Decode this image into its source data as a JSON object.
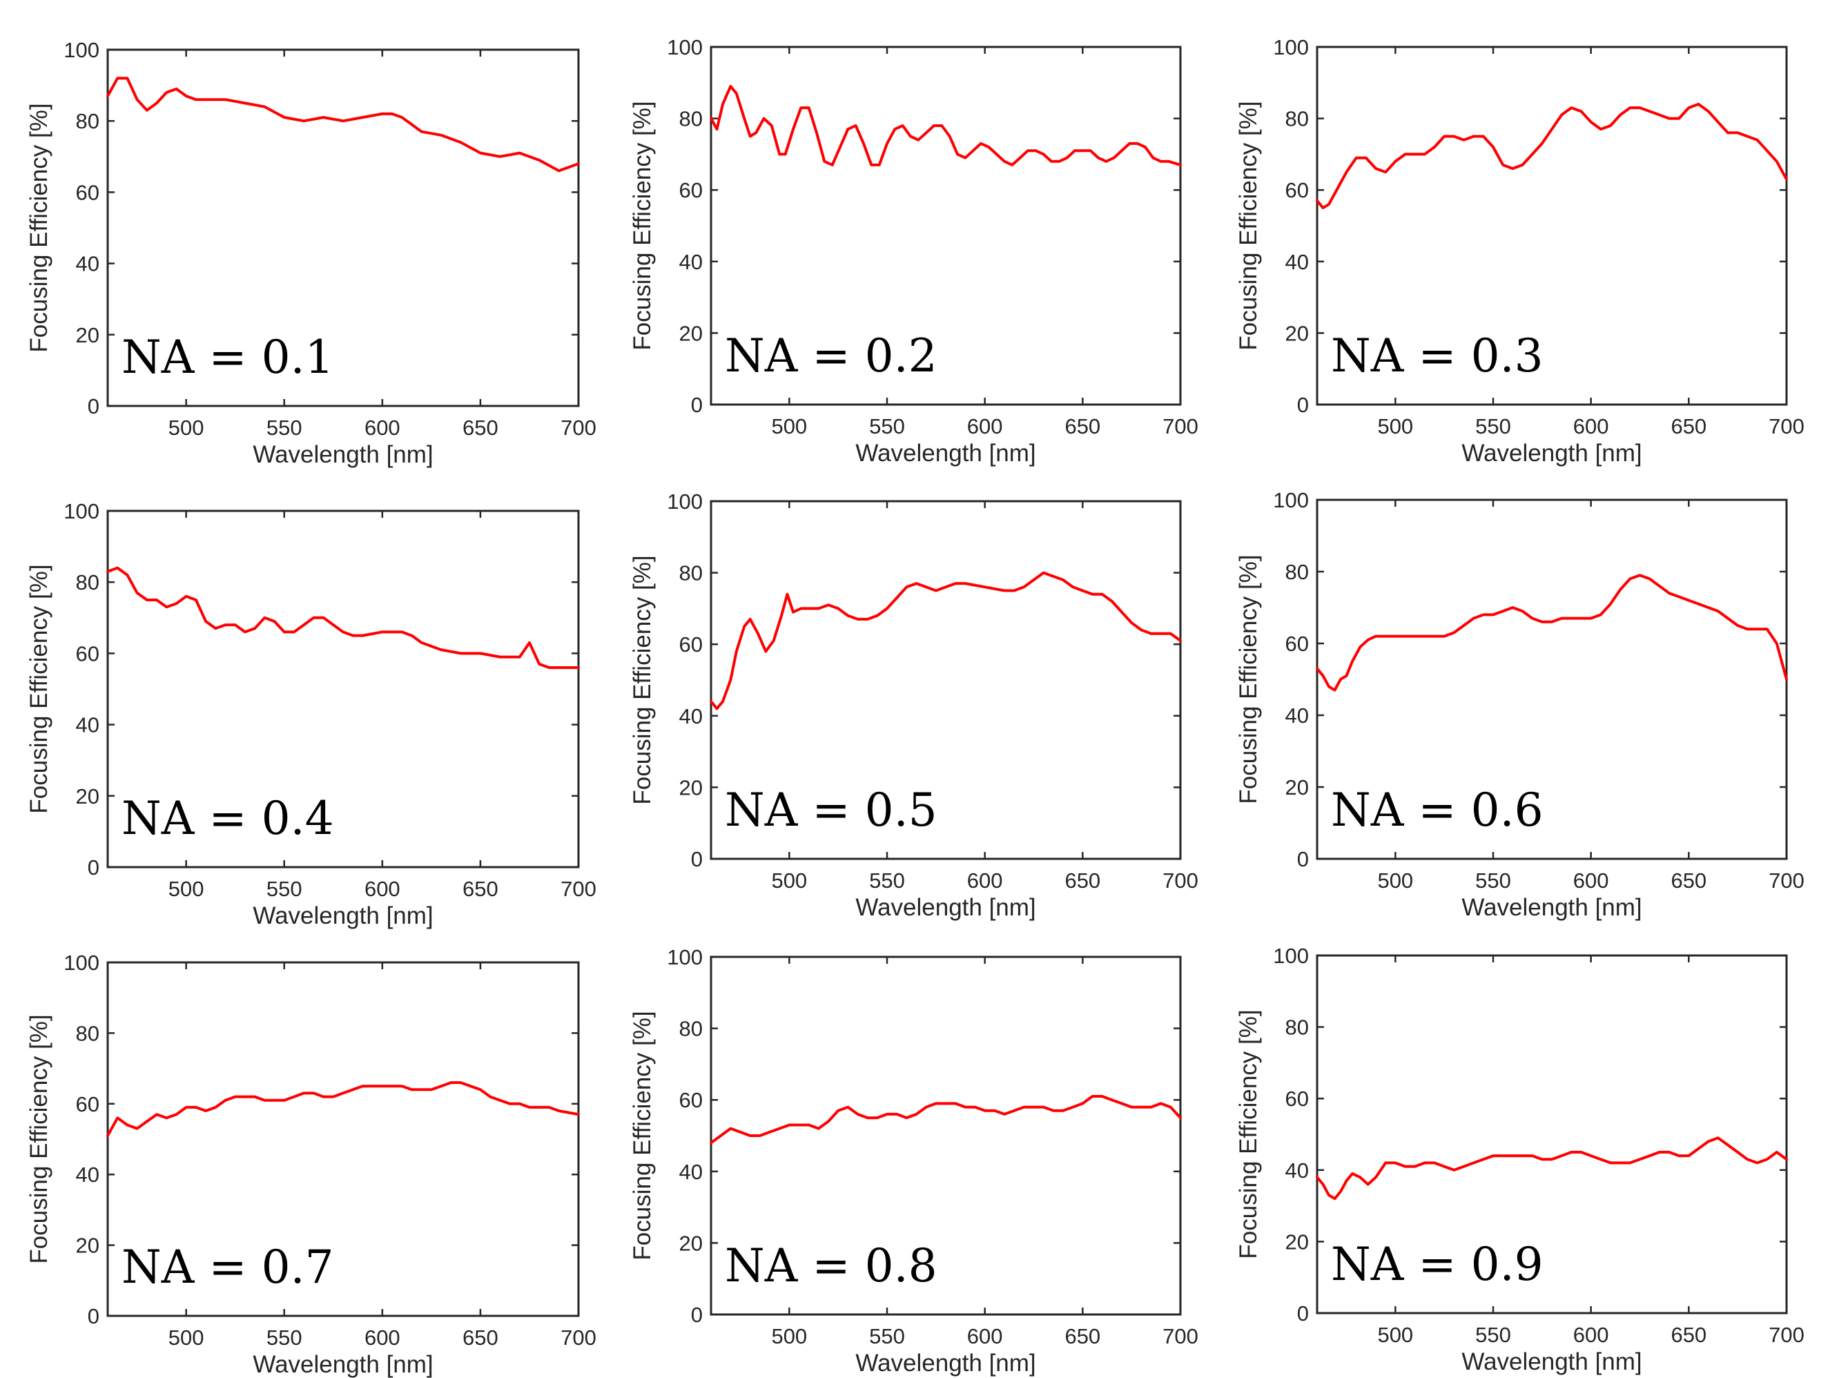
{
  "figure": {
    "series_color": "#ff0000",
    "axis_color": "#262626"
  },
  "chart_data": [
    {
      "type": "line",
      "annotation": "NA = 0.1",
      "xlabel": "Wavelength [nm]",
      "ylabel": "Focusing Efficiency [%]",
      "xlim": [
        460,
        700
      ],
      "ylim": [
        0,
        100
      ],
      "xticks": [
        500,
        550,
        600,
        650,
        700
      ],
      "yticks": [
        0,
        20,
        40,
        60,
        80,
        100
      ],
      "grid": false,
      "series": [
        {
          "name": "NA = 0.1",
          "x": [
            460,
            465,
            470,
            475,
            480,
            485,
            490,
            495,
            500,
            505,
            510,
            520,
            530,
            540,
            550,
            560,
            570,
            580,
            590,
            600,
            605,
            610,
            620,
            630,
            640,
            650,
            660,
            670,
            680,
            690,
            700
          ],
          "values": [
            87,
            92,
            92,
            86,
            83,
            85,
            88,
            89,
            87,
            86,
            86,
            86,
            85,
            84,
            81,
            80,
            81,
            80,
            81,
            82,
            82,
            81,
            77,
            76,
            74,
            71,
            70,
            71,
            69,
            66,
            68
          ]
        }
      ]
    },
    {
      "type": "line",
      "annotation": "NA = 0.2",
      "xlabel": "Wavelength [nm]",
      "ylabel": "Focusing Efficiency [%]",
      "xlim": [
        460,
        700
      ],
      "ylim": [
        0,
        100
      ],
      "xticks": [
        500,
        550,
        600,
        650,
        700
      ],
      "yticks": [
        0,
        20,
        40,
        60,
        80,
        100
      ],
      "grid": false,
      "series": [
        {
          "name": "NA = 0.2",
          "x": [
            460,
            463,
            466,
            470,
            473,
            477,
            480,
            483,
            487,
            491,
            495,
            498,
            502,
            506,
            510,
            514,
            518,
            522,
            526,
            530,
            534,
            538,
            542,
            546,
            550,
            554,
            558,
            562,
            566,
            570,
            574,
            578,
            582,
            586,
            590,
            594,
            598,
            602,
            606,
            610,
            614,
            618,
            622,
            626,
            630,
            634,
            638,
            642,
            646,
            650,
            654,
            658,
            662,
            666,
            670,
            674,
            678,
            682,
            686,
            690,
            694,
            700
          ],
          "values": [
            80,
            77,
            84,
            89,
            87,
            80,
            75,
            76,
            80,
            78,
            70,
            70,
            77,
            83,
            83,
            76,
            68,
            67,
            72,
            77,
            78,
            73,
            67,
            67,
            73,
            77,
            78,
            75,
            74,
            76,
            78,
            78,
            75,
            70,
            69,
            71,
            73,
            72,
            70,
            68,
            67,
            69,
            71,
            71,
            70,
            68,
            68,
            69,
            71,
            71,
            71,
            69,
            68,
            69,
            71,
            73,
            73,
            72,
            69,
            68,
            68,
            67
          ]
        }
      ]
    },
    {
      "type": "line",
      "annotation": "NA = 0.3",
      "xlabel": "Wavelength [nm]",
      "ylabel": "Focusing Efficiency [%]",
      "xlim": [
        460,
        700
      ],
      "ylim": [
        0,
        100
      ],
      "xticks": [
        500,
        550,
        600,
        650,
        700
      ],
      "yticks": [
        0,
        20,
        40,
        60,
        80,
        100
      ],
      "grid": false,
      "series": [
        {
          "name": "NA = 0.3",
          "x": [
            460,
            463,
            466,
            470,
            475,
            480,
            485,
            490,
            495,
            500,
            505,
            510,
            515,
            520,
            525,
            530,
            535,
            540,
            545,
            550,
            555,
            560,
            565,
            570,
            575,
            580,
            585,
            590,
            595,
            600,
            605,
            610,
            615,
            620,
            625,
            630,
            635,
            640,
            645,
            650,
            655,
            660,
            665,
            670,
            675,
            680,
            685,
            690,
            695,
            700
          ],
          "values": [
            57,
            55,
            56,
            60,
            65,
            69,
            69,
            66,
            65,
            68,
            70,
            70,
            70,
            72,
            75,
            75,
            74,
            75,
            75,
            72,
            67,
            66,
            67,
            70,
            73,
            77,
            81,
            83,
            82,
            79,
            77,
            78,
            81,
            83,
            83,
            82,
            81,
            80,
            80,
            83,
            84,
            82,
            79,
            76,
            76,
            75,
            74,
            71,
            68,
            63
          ]
        }
      ]
    },
    {
      "type": "line",
      "annotation": "NA = 0.4",
      "xlabel": "Wavelength [nm]",
      "ylabel": "Focusing Efficiency [%]",
      "xlim": [
        460,
        700
      ],
      "ylim": [
        0,
        100
      ],
      "xticks": [
        500,
        550,
        600,
        650,
        700
      ],
      "yticks": [
        0,
        20,
        40,
        60,
        80,
        100
      ],
      "grid": false,
      "series": [
        {
          "name": "NA = 0.4",
          "x": [
            460,
            465,
            470,
            475,
            480,
            485,
            490,
            495,
            500,
            505,
            510,
            515,
            520,
            525,
            530,
            535,
            540,
            545,
            550,
            555,
            560,
            565,
            570,
            575,
            580,
            585,
            590,
            600,
            610,
            615,
            620,
            630,
            640,
            650,
            660,
            665,
            670,
            675,
            680,
            685,
            690,
            700
          ],
          "values": [
            83,
            84,
            82,
            77,
            75,
            75,
            73,
            74,
            76,
            75,
            69,
            67,
            68,
            68,
            66,
            67,
            70,
            69,
            66,
            66,
            68,
            70,
            70,
            68,
            66,
            65,
            65,
            66,
            66,
            65,
            63,
            61,
            60,
            60,
            59,
            59,
            59,
            63,
            57,
            56,
            56,
            56
          ]
        }
      ]
    },
    {
      "type": "line",
      "annotation": "NA = 0.5",
      "xlabel": "Wavelength [nm]",
      "ylabel": "Focusing Efficiency [%]",
      "xlim": [
        460,
        700
      ],
      "ylim": [
        0,
        100
      ],
      "xticks": [
        500,
        550,
        600,
        650,
        700
      ],
      "yticks": [
        0,
        20,
        40,
        60,
        80,
        100
      ],
      "grid": false,
      "series": [
        {
          "name": "NA = 0.5",
          "x": [
            460,
            463,
            466,
            470,
            473,
            477,
            480,
            484,
            488,
            492,
            496,
            499,
            502,
            506,
            510,
            515,
            520,
            525,
            530,
            535,
            540,
            545,
            550,
            555,
            560,
            565,
            570,
            575,
            580,
            585,
            590,
            600,
            610,
            615,
            620,
            625,
            630,
            635,
            640,
            645,
            650,
            655,
            660,
            665,
            670,
            675,
            680,
            685,
            690,
            695,
            700
          ],
          "values": [
            44,
            42,
            44,
            50,
            58,
            65,
            67,
            63,
            58,
            61,
            68,
            74,
            69,
            70,
            70,
            70,
            71,
            70,
            68,
            67,
            67,
            68,
            70,
            73,
            76,
            77,
            76,
            75,
            76,
            77,
            77,
            76,
            75,
            75,
            76,
            78,
            80,
            79,
            78,
            76,
            75,
            74,
            74,
            72,
            69,
            66,
            64,
            63,
            63,
            63,
            61
          ]
        }
      ]
    },
    {
      "type": "line",
      "annotation": "NA = 0.6",
      "xlabel": "Wavelength [nm]",
      "ylabel": "Focusing Efficiency [%]",
      "xlim": [
        460,
        700
      ],
      "ylim": [
        0,
        100
      ],
      "xticks": [
        500,
        550,
        600,
        650,
        700
      ],
      "yticks": [
        0,
        20,
        40,
        60,
        80,
        100
      ],
      "grid": false,
      "series": [
        {
          "name": "NA = 0.6",
          "x": [
            460,
            463,
            466,
            469,
            472,
            475,
            478,
            482,
            486,
            490,
            495,
            500,
            505,
            510,
            515,
            520,
            525,
            530,
            535,
            540,
            545,
            550,
            555,
            560,
            565,
            570,
            575,
            580,
            585,
            590,
            595,
            600,
            605,
            610,
            615,
            620,
            625,
            630,
            635,
            640,
            645,
            650,
            655,
            660,
            665,
            670,
            675,
            680,
            685,
            690,
            695,
            700
          ],
          "values": [
            53,
            51,
            48,
            47,
            50,
            51,
            55,
            59,
            61,
            62,
            62,
            62,
            62,
            62,
            62,
            62,
            62,
            63,
            65,
            67,
            68,
            68,
            69,
            70,
            69,
            67,
            66,
            66,
            67,
            67,
            67,
            67,
            68,
            71,
            75,
            78,
            79,
            78,
            76,
            74,
            73,
            72,
            71,
            70,
            69,
            67,
            65,
            64,
            64,
            64,
            60,
            50
          ]
        }
      ]
    },
    {
      "type": "line",
      "annotation": "NA = 0.7",
      "xlabel": "Wavelength [nm]",
      "ylabel": "Focusing Efficiency [%]",
      "xlim": [
        460,
        700
      ],
      "ylim": [
        0,
        100
      ],
      "xticks": [
        500,
        550,
        600,
        650,
        700
      ],
      "yticks": [
        0,
        20,
        40,
        60,
        80,
        100
      ],
      "grid": false,
      "series": [
        {
          "name": "NA = 0.7",
          "x": [
            460,
            465,
            470,
            475,
            480,
            485,
            490,
            495,
            500,
            505,
            510,
            515,
            520,
            525,
            530,
            535,
            540,
            545,
            550,
            555,
            560,
            565,
            570,
            575,
            580,
            585,
            590,
            595,
            600,
            605,
            610,
            615,
            620,
            625,
            630,
            635,
            640,
            645,
            650,
            655,
            660,
            665,
            670,
            675,
            680,
            685,
            690,
            700
          ],
          "values": [
            51,
            56,
            54,
            53,
            55,
            57,
            56,
            57,
            59,
            59,
            58,
            59,
            61,
            62,
            62,
            62,
            61,
            61,
            61,
            62,
            63,
            63,
            62,
            62,
            63,
            64,
            65,
            65,
            65,
            65,
            65,
            64,
            64,
            64,
            65,
            66,
            66,
            65,
            64,
            62,
            61,
            60,
            60,
            59,
            59,
            59,
            58,
            57
          ]
        }
      ]
    },
    {
      "type": "line",
      "annotation": "NA = 0.8",
      "xlabel": "Wavelength [nm]",
      "ylabel": "Focusing Efficiency [%]",
      "xlim": [
        460,
        700
      ],
      "ylim": [
        0,
        100
      ],
      "xticks": [
        500,
        550,
        600,
        650,
        700
      ],
      "yticks": [
        0,
        20,
        40,
        60,
        80,
        100
      ],
      "grid": false,
      "series": [
        {
          "name": "NA = 0.8",
          "x": [
            460,
            465,
            470,
            475,
            480,
            485,
            490,
            495,
            500,
            505,
            510,
            515,
            520,
            525,
            530,
            535,
            540,
            545,
            550,
            555,
            560,
            565,
            570,
            575,
            580,
            585,
            590,
            595,
            600,
            605,
            610,
            615,
            620,
            625,
            630,
            635,
            640,
            645,
            650,
            655,
            660,
            665,
            670,
            675,
            680,
            685,
            690,
            695,
            700
          ],
          "values": [
            48,
            50,
            52,
            51,
            50,
            50,
            51,
            52,
            53,
            53,
            53,
            52,
            54,
            57,
            58,
            56,
            55,
            55,
            56,
            56,
            55,
            56,
            58,
            59,
            59,
            59,
            58,
            58,
            57,
            57,
            56,
            57,
            58,
            58,
            58,
            57,
            57,
            58,
            59,
            61,
            61,
            60,
            59,
            58,
            58,
            58,
            59,
            58,
            55
          ]
        }
      ]
    },
    {
      "type": "line",
      "annotation": "NA = 0.9",
      "xlabel": "Wavelength [nm]",
      "ylabel": "Focusing Efficiency [%]",
      "xlim": [
        460,
        700
      ],
      "ylim": [
        0,
        100
      ],
      "xticks": [
        500,
        550,
        600,
        650,
        700
      ],
      "yticks": [
        0,
        20,
        40,
        60,
        80,
        100
      ],
      "grid": false,
      "series": [
        {
          "name": "NA = 0.9",
          "x": [
            460,
            463,
            466,
            469,
            472,
            475,
            478,
            482,
            486,
            490,
            495,
            500,
            505,
            510,
            515,
            520,
            525,
            530,
            535,
            540,
            545,
            550,
            555,
            560,
            565,
            570,
            575,
            580,
            585,
            590,
            595,
            600,
            605,
            610,
            615,
            620,
            625,
            630,
            635,
            640,
            645,
            650,
            655,
            660,
            665,
            670,
            675,
            680,
            685,
            690,
            695,
            700
          ],
          "values": [
            38,
            36,
            33,
            32,
            34,
            37,
            39,
            38,
            36,
            38,
            42,
            42,
            41,
            41,
            42,
            42,
            41,
            40,
            41,
            42,
            43,
            44,
            44,
            44,
            44,
            44,
            43,
            43,
            44,
            45,
            45,
            44,
            43,
            42,
            42,
            42,
            43,
            44,
            45,
            45,
            44,
            44,
            46,
            48,
            49,
            47,
            45,
            43,
            42,
            43,
            45,
            43
          ]
        }
      ]
    }
  ]
}
